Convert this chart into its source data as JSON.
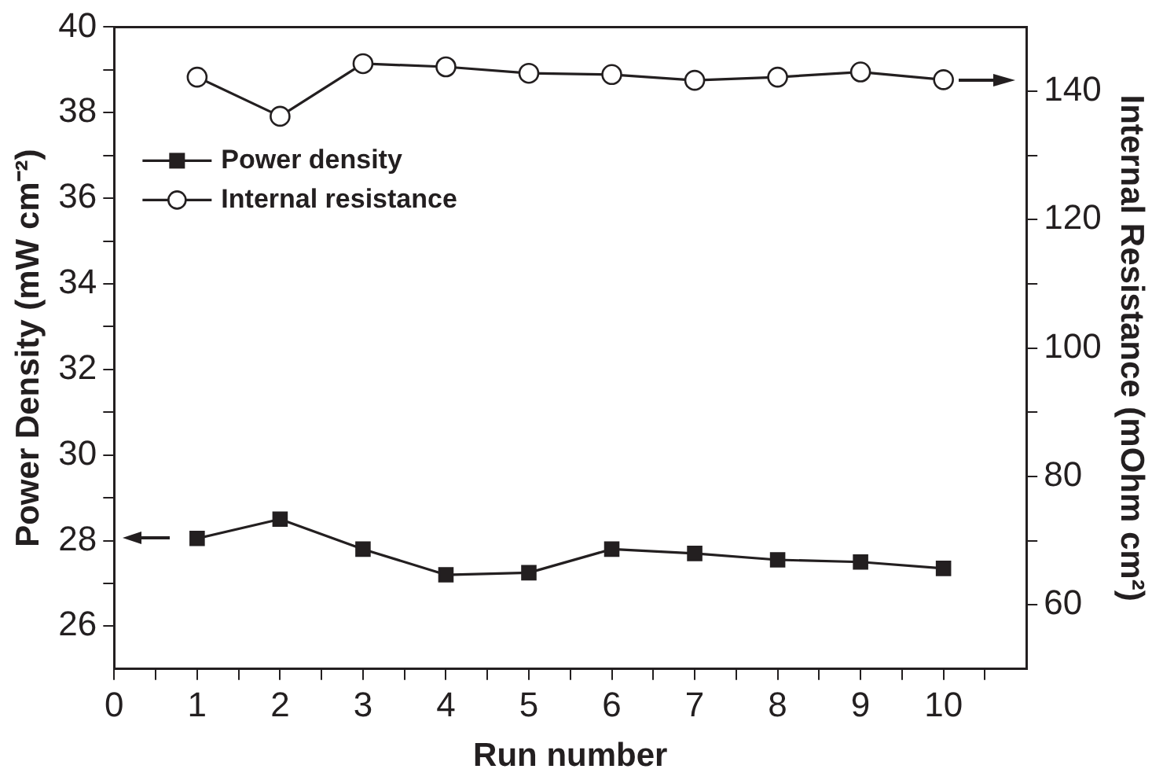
{
  "chart_data": {
    "type": "line",
    "xlabel": "Run number",
    "ylabel": "Power Density (mW cm⁻²)",
    "y2label": "Internal Resistance (mOhm cm²)",
    "x": [
      1,
      2,
      3,
      4,
      5,
      6,
      7,
      8,
      9,
      10
    ],
    "series": [
      {
        "name": "Power density",
        "color": "#231f20",
        "marker": "square",
        "values": [
          28.05,
          28.5,
          27.8,
          27.2,
          27.25,
          27.8,
          27.7,
          27.55,
          27.5,
          27.35
        ]
      },
      {
        "name": "Internal resistance",
        "color": "#231f20",
        "marker": "circle",
        "axis": "y2",
        "values": [
          142.2,
          136.1,
          144.3,
          143.8,
          142.8,
          142.6,
          141.7,
          142.2,
          143,
          141.8
        ]
      }
    ],
    "xlim": [
      0,
      11
    ],
    "xticks": [
      0,
      {
        "value": 0.5,
        "label": null
      },
      1,
      {
        "value": 1.5,
        "label": null
      },
      2,
      {
        "value": 2.5,
        "label": null
      },
      3,
      {
        "value": 3.5,
        "label": null
      },
      4,
      {
        "value": 4.5,
        "label": null
      },
      5,
      {
        "value": 5.5,
        "label": null
      },
      6,
      {
        "value": 6.5,
        "label": null
      },
      7,
      {
        "value": 7.5,
        "label": null
      },
      8,
      {
        "value": 8.5,
        "label": null
      },
      9,
      {
        "value": 9.5,
        "label": null
      },
      10,
      {
        "value": 10.5,
        "label": null
      }
    ],
    "ylim": [
      25,
      40
    ],
    "yticks": [
      26,
      {
        "value": 27,
        "label": null
      },
      28,
      {
        "value": 29,
        "label": null
      },
      30,
      {
        "value": 31,
        "label": null
      },
      32,
      {
        "value": 33,
        "label": null
      },
      34,
      {
        "value": 35,
        "label": null
      },
      36,
      {
        "value": 37,
        "label": null
      },
      38,
      {
        "value": 39,
        "label": null
      },
      40
    ],
    "y2lim": [
      50,
      150
    ],
    "y2ticks": [
      60,
      {
        "value": 70,
        "label": null
      },
      80,
      {
        "value": 90,
        "label": null
      },
      100,
      {
        "value": 110,
        "label": null
      },
      120,
      {
        "value": 130,
        "label": null
      },
      140
    ],
    "legend": "top left",
    "grid": false,
    "line_style": "solid"
  }
}
